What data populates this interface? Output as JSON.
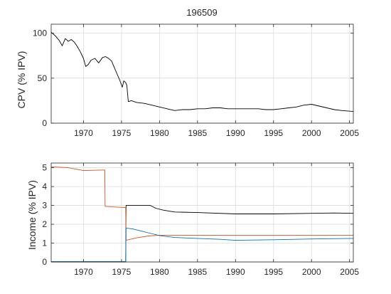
{
  "chart_data": [
    {
      "type": "line",
      "title": "196509",
      "xlabel": "",
      "ylabel": "CPV (% IPV)",
      "xlim": [
        1965.75,
        2005.5
      ],
      "ylim": [
        0,
        110
      ],
      "xticks": [
        1970,
        1975,
        1980,
        1985,
        1990,
        1995,
        2000,
        2005
      ],
      "xtick_labels": [
        "1970",
        "1975",
        "1980",
        "1985",
        "1990",
        "1995",
        "2000",
        "2005"
      ],
      "yticks": [
        0,
        50,
        100
      ],
      "ytick_labels": [
        "0",
        "50",
        "100"
      ],
      "grid": true,
      "series": [
        {
          "color": "#000000",
          "x": [
            1965.75,
            1966.3,
            1966.8,
            1967.2,
            1967.6,
            1968.0,
            1968.4,
            1968.8,
            1969.2,
            1969.6,
            1970.0,
            1970.3,
            1970.6,
            1971.0,
            1971.5,
            1972.0,
            1972.5,
            1972.9,
            1973.3,
            1973.7,
            1974.0,
            1974.4,
            1974.8,
            1975.1,
            1975.3,
            1975.55,
            1975.7,
            1975.9,
            1976.3,
            1977.0,
            1978.0,
            1979.0,
            1980.0,
            1981.0,
            1982.0,
            1983.0,
            1984.0,
            1985.0,
            1986.0,
            1987.0,
            1988.0,
            1989.0,
            1990.0,
            1991.0,
            1992.0,
            1993.0,
            1994.0,
            1995.0,
            1996.0,
            1997.0,
            1998.0,
            1999.0,
            2000.0,
            2001.0,
            2002.0,
            2003.0,
            2004.0,
            2005.5
          ],
          "y": [
            101,
            97,
            92,
            86,
            94,
            91,
            93,
            90,
            85,
            79,
            72,
            63,
            65,
            70,
            72,
            67,
            73,
            74,
            72,
            69,
            63,
            55,
            47,
            40,
            47,
            45,
            42,
            24,
            25,
            23,
            22,
            20,
            18,
            16,
            14,
            15,
            15,
            16,
            16,
            17,
            17,
            16,
            16,
            16,
            16,
            16,
            15,
            15,
            16,
            17,
            18,
            20,
            21,
            19,
            17,
            15,
            14,
            13
          ]
        }
      ]
    },
    {
      "type": "line",
      "title": "",
      "xlabel": "",
      "ylabel": "Income (% IPV)",
      "xlim": [
        1965.75,
        2005.5
      ],
      "ylim": [
        0,
        5.25
      ],
      "xticks": [
        1970,
        1975,
        1980,
        1985,
        1990,
        1995,
        2000,
        2005
      ],
      "xtick_labels": [
        "1970",
        "1975",
        "1980",
        "1985",
        "1990",
        "1995",
        "2000",
        "2005"
      ],
      "yticks": [
        0,
        1,
        2,
        3,
        4,
        5
      ],
      "ytick_labels": [
        "0",
        "1",
        "2",
        "3",
        "4",
        "5"
      ],
      "grid": true,
      "series": [
        {
          "color": "#000000",
          "x": [
            1965.75,
            1975.55,
            1975.6,
            1978.8,
            1979.5,
            1980.5,
            1982.0,
            1985.0,
            1990.0,
            1995.0,
            2000.0,
            2003.0,
            2005.5
          ],
          "y": [
            0.0,
            0.0,
            3.0,
            3.0,
            2.85,
            2.75,
            2.65,
            2.62,
            2.55,
            2.55,
            2.58,
            2.6,
            2.58
          ]
        },
        {
          "color": "#d95319",
          "x": [
            1965.75,
            1968.0,
            1970.0,
            1972.8,
            1972.85,
            1975.55,
            1975.6,
            1977.0,
            1978.5,
            1980.0,
            1985.0,
            1990.0,
            1995.0,
            2000.0,
            2005.5
          ],
          "y": [
            5.05,
            5.0,
            4.85,
            4.88,
            2.95,
            2.88,
            1.15,
            1.28,
            1.38,
            1.42,
            1.42,
            1.42,
            1.42,
            1.42,
            1.42
          ]
        },
        {
          "color": "#0072bd",
          "x": [
            1965.75,
            1975.55,
            1975.6,
            1976.5,
            1977.5,
            1978.5,
            1980.0,
            1982.0,
            1985.0,
            1988.0,
            1990.0,
            1995.0,
            2000.0,
            2005.5
          ],
          "y": [
            0.02,
            0.02,
            1.8,
            1.75,
            1.65,
            1.55,
            1.4,
            1.3,
            1.25,
            1.2,
            1.15,
            1.18,
            1.22,
            1.25
          ]
        }
      ]
    }
  ]
}
